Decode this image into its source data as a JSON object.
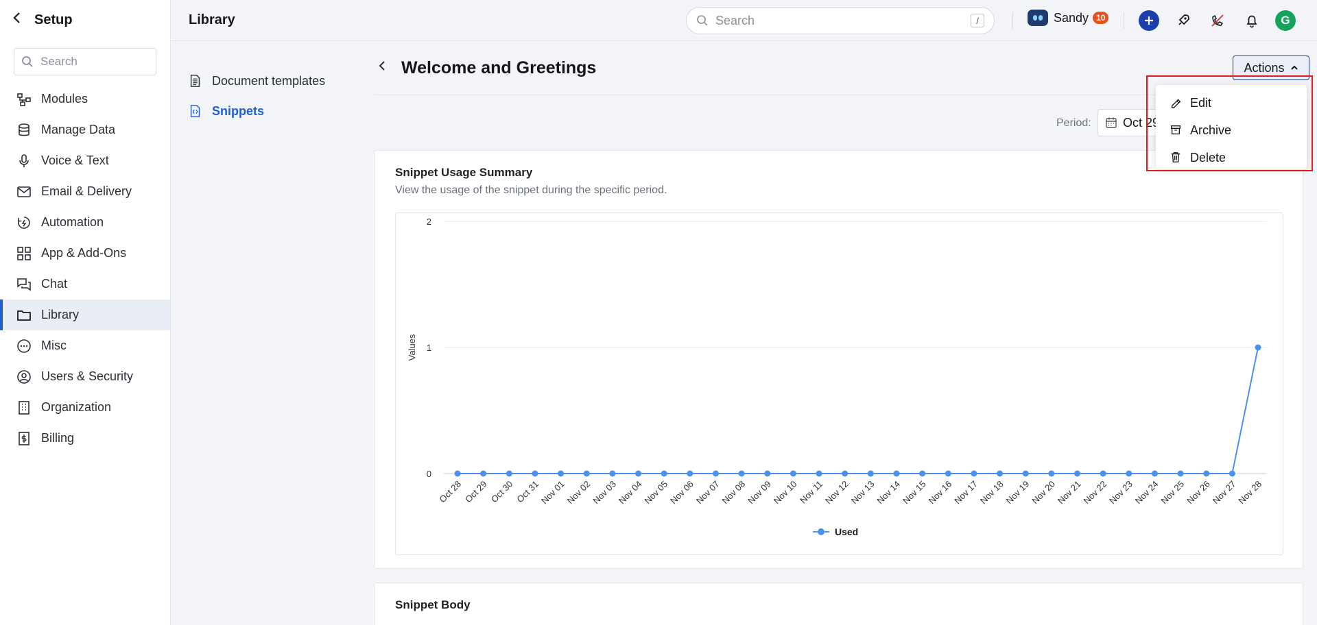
{
  "leftnav": {
    "title": "Setup",
    "search_placeholder": "Search",
    "items": [
      {
        "label": "Modules",
        "icon": "modules-icon"
      },
      {
        "label": "Manage Data",
        "icon": "database-icon"
      },
      {
        "label": "Voice & Text",
        "icon": "microphone-icon"
      },
      {
        "label": "Email & Delivery",
        "icon": "mail-icon"
      },
      {
        "label": "Automation",
        "icon": "automation-icon"
      },
      {
        "label": "App & Add-Ons",
        "icon": "apps-grid-icon"
      },
      {
        "label": "Chat",
        "icon": "chat-icon"
      },
      {
        "label": "Library",
        "icon": "folder-icon",
        "active": true
      },
      {
        "label": "Misc",
        "icon": "more-circle-icon"
      },
      {
        "label": "Users & Security",
        "icon": "user-circle-icon"
      },
      {
        "label": "Organization",
        "icon": "building-icon"
      },
      {
        "label": "Billing",
        "icon": "billing-icon"
      }
    ]
  },
  "topbar": {
    "title": "Library",
    "search_placeholder": "Search",
    "search_shortcut": "/",
    "user_name": "Sandy",
    "notification_count": "10",
    "avatar_initial": "G"
  },
  "subnav": {
    "items": [
      {
        "label": "Document templates",
        "icon": "document-icon"
      },
      {
        "label": "Snippets",
        "icon": "snippet-icon",
        "active": true
      }
    ]
  },
  "main": {
    "page_title": "Welcome and Greetings",
    "actions_label": "Actions",
    "period_label": "Period:",
    "period_value": "Oct 29",
    "usage_card": {
      "title": "Snippet Usage Summary",
      "subtitle": "View the usage of the snippet during the specific period."
    },
    "body_card": {
      "title": "Snippet Body"
    }
  },
  "actions_menu": {
    "items": [
      {
        "label": "Edit",
        "icon": "pencil-icon"
      },
      {
        "label": "Archive",
        "icon": "archive-icon"
      },
      {
        "label": "Delete",
        "icon": "trash-icon"
      }
    ]
  },
  "chart_data": {
    "type": "line",
    "ylabel": "Values",
    "xlabel": "",
    "ylim": [
      0,
      2
    ],
    "yticks": [
      0,
      1,
      2
    ],
    "grid": true,
    "legend_position": "bottom",
    "categories": [
      "Oct 28",
      "Oct 29",
      "Oct 30",
      "Oct 31",
      "Nov 01",
      "Nov 02",
      "Nov 03",
      "Nov 04",
      "Nov 05",
      "Nov 06",
      "Nov 07",
      "Nov 08",
      "Nov 09",
      "Nov 10",
      "Nov 11",
      "Nov 12",
      "Nov 13",
      "Nov 14",
      "Nov 15",
      "Nov 16",
      "Nov 17",
      "Nov 18",
      "Nov 19",
      "Nov 20",
      "Nov 21",
      "Nov 22",
      "Nov 23",
      "Nov 24",
      "Nov 25",
      "Nov 26",
      "Nov 27",
      "Nov 28"
    ],
    "series": [
      {
        "name": "Used",
        "color": "#4a90f0",
        "values": [
          0,
          0,
          0,
          0,
          0,
          0,
          0,
          0,
          0,
          0,
          0,
          0,
          0,
          0,
          0,
          0,
          0,
          0,
          0,
          0,
          0,
          0,
          0,
          0,
          0,
          0,
          0,
          0,
          0,
          0,
          0,
          1
        ]
      }
    ]
  }
}
